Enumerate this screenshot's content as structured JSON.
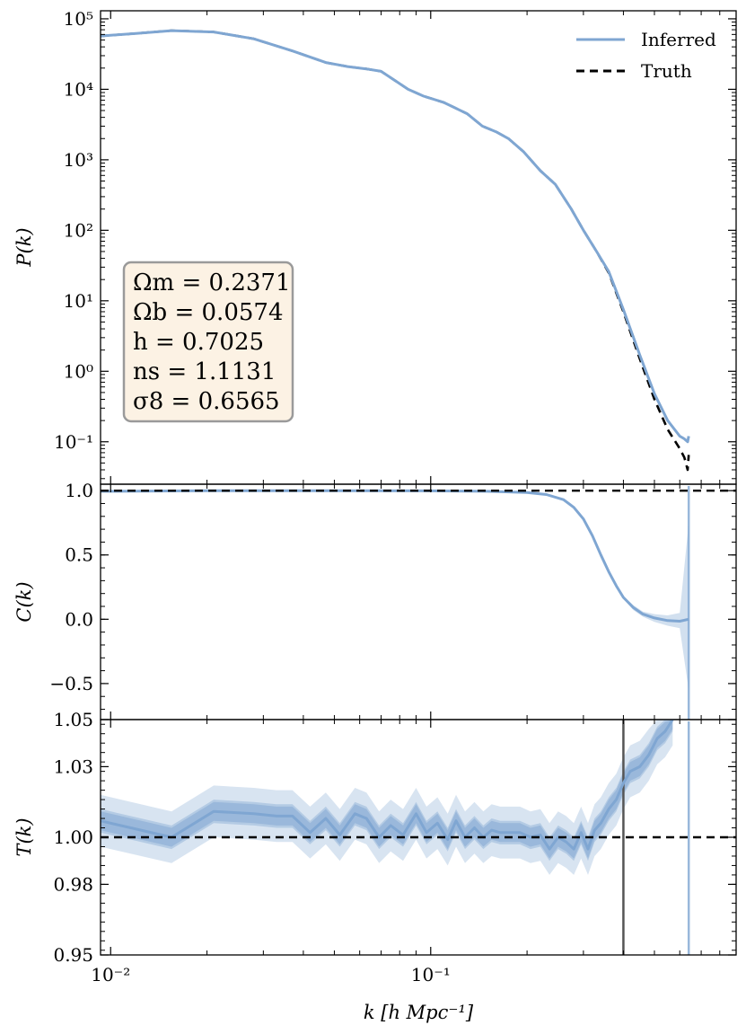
{
  "colors": {
    "inferred": "#7fa6d2",
    "truth": "#000000",
    "vline": "#555555",
    "box_fill": "#fcf2e4",
    "box_edge": "#9a9a9a"
  },
  "legend": {
    "placement": "top-right",
    "inferred": "Inferred",
    "truth": "Truth"
  },
  "params_box": {
    "lines": [
      "Ωm = 0.2371",
      "Ωb = 0.0574",
      "h = 0.7025",
      "ns = 1.1131",
      "σ8 = 0.6565"
    ]
  },
  "xaxis": {
    "label": "k [h Mpc⁻¹]",
    "scale": "log",
    "lim": [
      0.0093,
      0.9
    ],
    "ticks": [
      {
        "value": 0.01,
        "label": "10⁻²"
      },
      {
        "value": 0.1,
        "label": "10⁻¹"
      }
    ]
  },
  "chart_data": [
    {
      "type": "line",
      "name": "P(k)",
      "ylabel": "P(k)",
      "yscale": "log",
      "ylim": [
        0.025,
        130000
      ],
      "yticks": [
        {
          "value": 100000,
          "label": "10⁵"
        },
        {
          "value": 10000,
          "label": "10⁴"
        },
        {
          "value": 1000,
          "label": "10³"
        },
        {
          "value": 100,
          "label": "10²"
        },
        {
          "value": 10,
          "label": "10¹"
        },
        {
          "value": 1,
          "label": "10⁰"
        },
        {
          "value": 0.1,
          "label": "10⁻¹"
        }
      ],
      "series": [
        {
          "name": "Truth",
          "style": "dashed",
          "x": [
            0.0093,
            0.012,
            0.0155,
            0.021,
            0.028,
            0.037,
            0.047,
            0.055,
            0.063,
            0.07,
            0.078,
            0.085,
            0.095,
            0.11,
            0.13,
            0.145,
            0.16,
            0.175,
            0.195,
            0.22,
            0.245,
            0.275,
            0.3,
            0.33,
            0.36,
            0.4,
            0.45,
            0.5,
            0.55,
            0.6,
            0.62,
            0.635,
            0.64
          ],
          "y": [
            57000,
            62000,
            68000,
            65000,
            52000,
            35000,
            24000,
            21000,
            19500,
            18000,
            13000,
            10000,
            8000,
            6500,
            4500,
            3000,
            2500,
            2000,
            1300,
            700,
            450,
            200,
            100,
            50,
            25,
            7,
            1.5,
            0.4,
            0.15,
            0.08,
            0.06,
            0.04,
            0.065
          ]
        },
        {
          "name": "Inferred",
          "style": "solid",
          "x": [
            0.0093,
            0.012,
            0.0155,
            0.021,
            0.028,
            0.037,
            0.047,
            0.055,
            0.063,
            0.07,
            0.078,
            0.085,
            0.095,
            0.11,
            0.13,
            0.145,
            0.16,
            0.175,
            0.195,
            0.22,
            0.245,
            0.275,
            0.3,
            0.33,
            0.36,
            0.4,
            0.45,
            0.5,
            0.55,
            0.6,
            0.62,
            0.635,
            0.64
          ],
          "y": [
            57000,
            62000,
            68000,
            65000,
            52000,
            35000,
            24000,
            21000,
            19500,
            18000,
            13000,
            10000,
            8000,
            6500,
            4500,
            3000,
            2500,
            2000,
            1300,
            700,
            450,
            200,
            100,
            50,
            26,
            7.5,
            1.7,
            0.48,
            0.2,
            0.12,
            0.11,
            0.1,
            0.12
          ]
        }
      ]
    },
    {
      "type": "line",
      "name": "C(k)",
      "ylabel": "C(k)",
      "yscale": "linear",
      "ylim": [
        -0.78,
        1.05
      ],
      "yticks": [
        {
          "value": 1.0,
          "label": "1.0"
        },
        {
          "value": 0.5,
          "label": "0.5"
        },
        {
          "value": 0.0,
          "label": "0.0"
        },
        {
          "value": -0.5,
          "label": "−0.5"
        }
      ],
      "hline": 1.0,
      "series": [
        {
          "name": "Inferred",
          "x": [
            0.0093,
            0.02,
            0.05,
            0.1,
            0.15,
            0.2,
            0.23,
            0.26,
            0.28,
            0.3,
            0.32,
            0.34,
            0.36,
            0.38,
            0.4,
            0.43,
            0.46,
            0.5,
            0.55,
            0.6,
            0.64
          ],
          "y": [
            0.995,
            0.999,
            0.999,
            0.998,
            0.995,
            0.985,
            0.97,
            0.93,
            0.87,
            0.78,
            0.65,
            0.5,
            0.37,
            0.26,
            0.17,
            0.09,
            0.04,
            0.01,
            -0.01,
            -0.015,
            0.0
          ],
          "band_low": [
            0.993,
            0.998,
            0.998,
            0.997,
            0.993,
            0.982,
            0.966,
            0.925,
            0.862,
            0.77,
            0.64,
            0.49,
            0.36,
            0.25,
            0.16,
            0.07,
            0.02,
            -0.02,
            -0.05,
            -0.07,
            -0.55
          ],
          "band_high": [
            0.997,
            1.0,
            1.0,
            0.999,
            0.997,
            0.988,
            0.974,
            0.935,
            0.878,
            0.79,
            0.66,
            0.51,
            0.38,
            0.27,
            0.18,
            0.11,
            0.06,
            0.04,
            0.03,
            0.05,
            0.75
          ]
        }
      ]
    },
    {
      "type": "line",
      "name": "T(k)",
      "ylabel": "T(k)",
      "yscale": "linear",
      "ylim": [
        0.95,
        1.05
      ],
      "yticks": [
        {
          "value": 1.05,
          "label": "1.05"
        },
        {
          "value": 1.03,
          "label": "1.03"
        },
        {
          "value": 1.0,
          "label": "1.00"
        },
        {
          "value": 0.98,
          "label": "0.98"
        },
        {
          "value": 0.95,
          "label": "0.95"
        }
      ],
      "hline": 1.0,
      "vlines": [
        0.4
      ],
      "series": [
        {
          "name": "Inferred",
          "x": [
            0.0093,
            0.0155,
            0.021,
            0.028,
            0.033,
            0.037,
            0.042,
            0.047,
            0.052,
            0.058,
            0.063,
            0.069,
            0.075,
            0.082,
            0.09,
            0.097,
            0.105,
            0.113,
            0.12,
            0.128,
            0.137,
            0.146,
            0.155,
            0.165,
            0.177,
            0.19,
            0.205,
            0.22,
            0.235,
            0.25,
            0.265,
            0.28,
            0.295,
            0.31,
            0.325,
            0.34,
            0.36,
            0.38,
            0.4,
            0.42,
            0.45,
            0.48,
            0.51,
            0.54,
            0.57
          ],
          "y": [
            1.007,
            1.0,
            1.011,
            1.01,
            1.009,
            1.009,
            1.002,
            1.008,
            1.001,
            1.01,
            1.008,
            1.0,
            1.005,
            1.001,
            1.01,
            1.002,
            1.006,
            0.999,
            1.007,
            1.0,
            1.004,
            1.0,
            1.003,
            1.002,
            1.002,
            1.002,
            1.0,
            1.001,
            0.995,
            1.0,
            0.998,
            0.995,
            1.002,
            0.995,
            1.003,
            1.006,
            1.012,
            1.016,
            1.023,
            1.028,
            1.03,
            1.035,
            1.042,
            1.045,
            1.05
          ],
          "band_halfwidths": [
            0.011,
            0.005,
            0.004
          ]
        }
      ]
    }
  ]
}
